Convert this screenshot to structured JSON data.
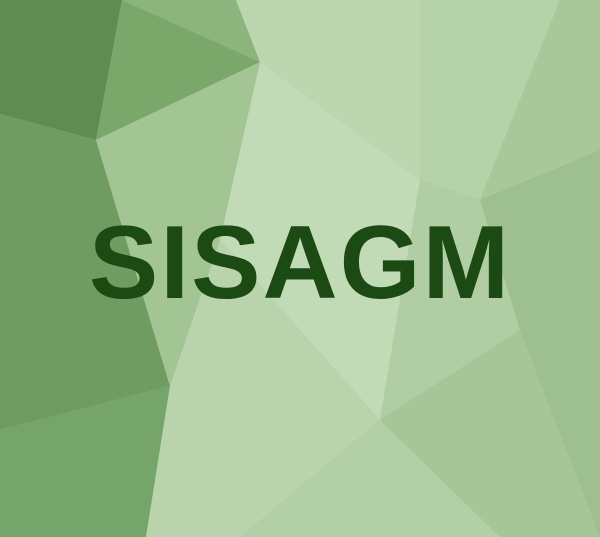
{
  "banner": {
    "title": "SISAGM",
    "title_color": "#1b4b12",
    "background_colors": {
      "dark": "#5f8c52",
      "mid": "#79a86a",
      "light": "#bcd6b0",
      "base": "#a9c89a"
    }
  }
}
